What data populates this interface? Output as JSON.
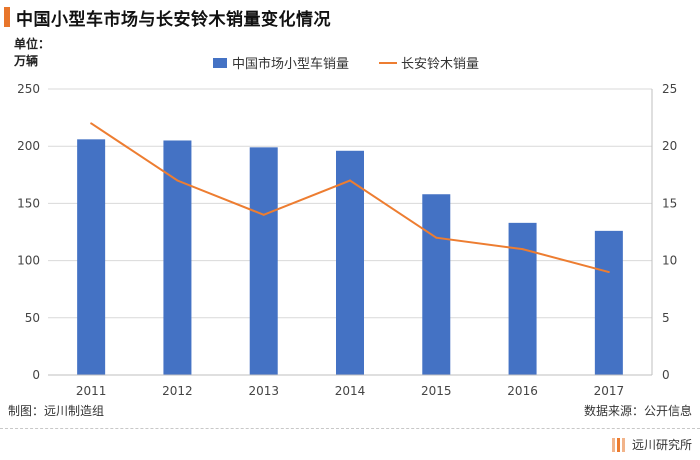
{
  "header": {
    "title": "中国小型车市场与长安铃木销量变化情况",
    "unit_line1": "单位：",
    "unit_line2": "万辆"
  },
  "footer": {
    "credit": "制图：远川制造组",
    "source": "数据来源：公开信息",
    "brand": "远川研究所"
  },
  "colors": {
    "bar": "#4472c4",
    "line": "#ed7d31",
    "accent": "#e8762b",
    "grid": "#d9d9d9",
    "axis": "#bfbfbf"
  },
  "chart_data": {
    "type": "bar",
    "title": "中国小型车市场与长安铃木销量变化情况",
    "categories": [
      "2011",
      "2012",
      "2013",
      "2014",
      "2015",
      "2016",
      "2017"
    ],
    "series": [
      {
        "name": "中国市场小型车销量",
        "type": "bar",
        "axis": "left",
        "values": [
          206,
          205,
          199,
          196,
          158,
          133,
          126
        ]
      },
      {
        "name": "长安铃木销量",
        "type": "line",
        "axis": "right",
        "values": [
          22,
          17,
          14,
          17,
          12,
          11,
          9
        ]
      }
    ],
    "y_left": {
      "min": 0,
      "max": 250,
      "ticks": [
        "0",
        "50",
        "100",
        "150",
        "200",
        "250"
      ]
    },
    "y_right": {
      "min": 0,
      "max": 25,
      "ticks": [
        "0",
        "5",
        "10",
        "15",
        "20",
        "25"
      ]
    },
    "ylabel": "单位：万辆",
    "grid": true,
    "legend": "top-center"
  }
}
